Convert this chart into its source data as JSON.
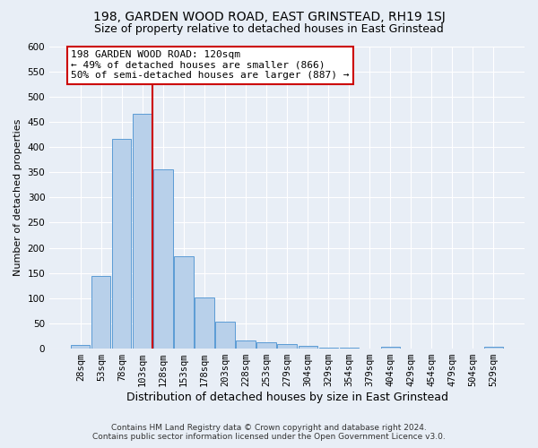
{
  "title": "198, GARDEN WOOD ROAD, EAST GRINSTEAD, RH19 1SJ",
  "subtitle": "Size of property relative to detached houses in East Grinstead",
  "xlabel": "Distribution of detached houses by size in East Grinstead",
  "ylabel": "Number of detached properties",
  "footer_line1": "Contains HM Land Registry data © Crown copyright and database right 2024.",
  "footer_line2": "Contains public sector information licensed under the Open Government Licence v3.0.",
  "categories": [
    "28sqm",
    "53sqm",
    "78sqm",
    "103sqm",
    "128sqm",
    "153sqm",
    "178sqm",
    "203sqm",
    "228sqm",
    "253sqm",
    "279sqm",
    "304sqm",
    "329sqm",
    "354sqm",
    "379sqm",
    "404sqm",
    "429sqm",
    "454sqm",
    "479sqm",
    "504sqm",
    "529sqm"
  ],
  "values": [
    8,
    144,
    416,
    465,
    355,
    184,
    102,
    54,
    16,
    12,
    9,
    5,
    2,
    2,
    1,
    3,
    0,
    0,
    0,
    0,
    3
  ],
  "bar_color": "#b8d0ea",
  "bar_edge_color": "#5b9bd5",
  "vline_x": 3.5,
  "annotation_line1": "198 GARDEN WOOD ROAD: 120sqm",
  "annotation_line2": "← 49% of detached houses are smaller (866)",
  "annotation_line3": "50% of semi-detached houses are larger (887) →",
  "annotation_box_fc": "#ffffff",
  "annotation_box_ec": "#cc0000",
  "vline_color": "#cc0000",
  "ylim_max": 600,
  "yticks": [
    0,
    50,
    100,
    150,
    200,
    250,
    300,
    350,
    400,
    450,
    500,
    550,
    600
  ],
  "bg_color": "#e8eef6",
  "grid_color": "#ffffff",
  "title_fontsize": 10,
  "subtitle_fontsize": 9,
  "xlabel_fontsize": 9,
  "ylabel_fontsize": 8,
  "tick_fontsize": 7.5,
  "ann_fontsize": 8
}
